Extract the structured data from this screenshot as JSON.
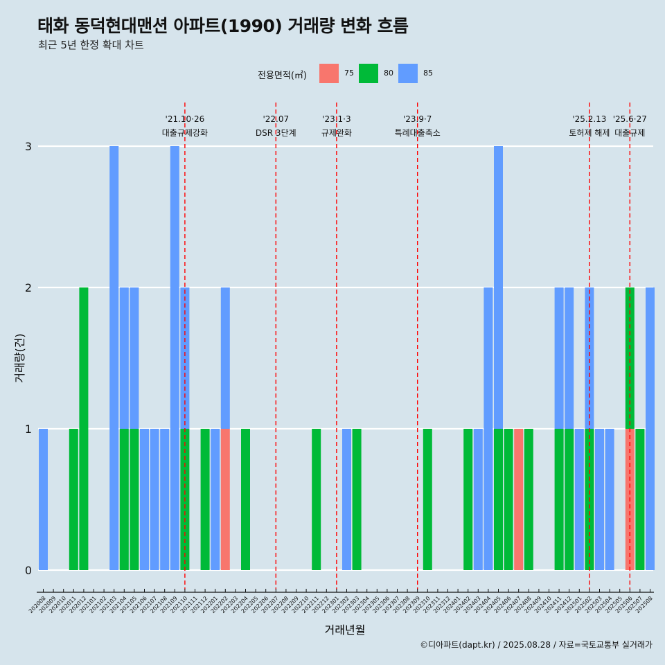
{
  "title": "태화 동덕현대맨션 아파트(1990) 거래량 변화 흐름",
  "subtitle": "최근 5년 한정 확대 차트",
  "caption": "©디아파트(dapt.kr) / 2025.08.28 / 자료=국토교통부 실거래가",
  "legend": {
    "title": "전용면적(㎡)",
    "items": [
      {
        "label": "75",
        "color": "#f8766d"
      },
      {
        "label": "80",
        "color": "#00ba38"
      },
      {
        "label": "85",
        "color": "#619cff"
      }
    ]
  },
  "chart_data": {
    "type": "bar",
    "stacked": true,
    "xlabel": "거래년월",
    "ylabel": "거래량(건)",
    "ylim": [
      0,
      3
    ],
    "y_ticks": [
      0,
      1,
      2,
      3
    ],
    "categories": [
      "202008",
      "202009",
      "202010",
      "202011",
      "202012",
      "202101",
      "202102",
      "202103",
      "202104",
      "202105",
      "202106",
      "202107",
      "202108",
      "202109",
      "202110",
      "202111",
      "202112",
      "202201",
      "202202",
      "202203",
      "202204",
      "202205",
      "202206",
      "202207",
      "202208",
      "202209",
      "202210",
      "202211",
      "202212",
      "202301",
      "202302",
      "202303",
      "202304",
      "202305",
      "202306",
      "202307",
      "202308",
      "202309",
      "202310",
      "202311",
      "202312",
      "202401",
      "202402",
      "202403",
      "202404",
      "202405",
      "202406",
      "202407",
      "202408",
      "202409",
      "202410",
      "202411",
      "202412",
      "202501",
      "202502",
      "202503",
      "202504",
      "202505",
      "202506",
      "202507",
      "202508"
    ],
    "bars": [
      {
        "x": "202008",
        "segments": [
          {
            "series": "85",
            "value": 1
          }
        ]
      },
      {
        "x": "202011",
        "segments": [
          {
            "series": "80",
            "value": 1
          }
        ]
      },
      {
        "x": "202012",
        "segments": [
          {
            "series": "80",
            "value": 2
          }
        ]
      },
      {
        "x": "202103",
        "segments": [
          {
            "series": "85",
            "value": 3
          }
        ]
      },
      {
        "x": "202104",
        "segments": [
          {
            "series": "80",
            "value": 1
          },
          {
            "series": "85",
            "value": 1
          }
        ]
      },
      {
        "x": "202105",
        "segments": [
          {
            "series": "80",
            "value": 1
          },
          {
            "series": "85",
            "value": 1
          }
        ]
      },
      {
        "x": "202106",
        "segments": [
          {
            "series": "85",
            "value": 1
          }
        ]
      },
      {
        "x": "202107",
        "segments": [
          {
            "series": "85",
            "value": 1
          }
        ]
      },
      {
        "x": "202108",
        "segments": [
          {
            "series": "85",
            "value": 1
          }
        ]
      },
      {
        "x": "202109",
        "segments": [
          {
            "series": "85",
            "value": 3
          }
        ]
      },
      {
        "x": "202110",
        "segments": [
          {
            "series": "80",
            "value": 1
          },
          {
            "series": "85",
            "value": 1
          }
        ]
      },
      {
        "x": "202112",
        "segments": [
          {
            "series": "80",
            "value": 1
          }
        ]
      },
      {
        "x": "202201",
        "segments": [
          {
            "series": "85",
            "value": 1
          }
        ]
      },
      {
        "x": "202202",
        "segments": [
          {
            "series": "75",
            "value": 1
          },
          {
            "series": "85",
            "value": 1
          }
        ]
      },
      {
        "x": "202204",
        "segments": [
          {
            "series": "80",
            "value": 1
          }
        ]
      },
      {
        "x": "202211",
        "segments": [
          {
            "series": "80",
            "value": 1
          }
        ]
      },
      {
        "x": "202302",
        "segments": [
          {
            "series": "85",
            "value": 1
          }
        ]
      },
      {
        "x": "202303",
        "segments": [
          {
            "series": "80",
            "value": 1
          }
        ]
      },
      {
        "x": "202310",
        "segments": [
          {
            "series": "80",
            "value": 1
          }
        ]
      },
      {
        "x": "202402",
        "segments": [
          {
            "series": "80",
            "value": 1
          }
        ]
      },
      {
        "x": "202403",
        "segments": [
          {
            "series": "85",
            "value": 1
          }
        ]
      },
      {
        "x": "202404",
        "segments": [
          {
            "series": "85",
            "value": 2
          }
        ]
      },
      {
        "x": "202405",
        "segments": [
          {
            "series": "80",
            "value": 1
          },
          {
            "series": "85",
            "value": 2
          }
        ]
      },
      {
        "x": "202406",
        "segments": [
          {
            "series": "80",
            "value": 1
          }
        ]
      },
      {
        "x": "202407",
        "segments": [
          {
            "series": "75",
            "value": 1
          }
        ]
      },
      {
        "x": "202408",
        "segments": [
          {
            "series": "80",
            "value": 1
          }
        ]
      },
      {
        "x": "202411",
        "segments": [
          {
            "series": "80",
            "value": 1
          },
          {
            "series": "85",
            "value": 1
          }
        ]
      },
      {
        "x": "202412",
        "segments": [
          {
            "series": "80",
            "value": 1
          },
          {
            "series": "85",
            "value": 1
          }
        ]
      },
      {
        "x": "202501",
        "segments": [
          {
            "series": "85",
            "value": 1
          }
        ]
      },
      {
        "x": "202502",
        "segments": [
          {
            "series": "80",
            "value": 1
          },
          {
            "series": "85",
            "value": 1
          }
        ]
      },
      {
        "x": "202503",
        "segments": [
          {
            "series": "85",
            "value": 1
          }
        ]
      },
      {
        "x": "202504",
        "segments": [
          {
            "series": "85",
            "value": 1
          }
        ]
      },
      {
        "x": "202506",
        "segments": [
          {
            "series": "75",
            "value": 1
          },
          {
            "series": "80",
            "value": 1
          }
        ]
      },
      {
        "x": "202507",
        "segments": [
          {
            "series": "80",
            "value": 1
          }
        ]
      },
      {
        "x": "202508",
        "segments": [
          {
            "series": "85",
            "value": 2
          }
        ]
      }
    ],
    "events": [
      {
        "x": "202110",
        "date": "'21.10·26",
        "label": "대출규제강화"
      },
      {
        "x": "202207",
        "date": "'22.07",
        "label": "DSR 3단계"
      },
      {
        "x": "202301",
        "date": "'23.1·3",
        "label": "규제완화"
      },
      {
        "x": "202309",
        "date": "'23.9·7",
        "label": "특례대출축소"
      },
      {
        "x": "202502",
        "date": "'25.2.13",
        "label": "토허제 해제"
      },
      {
        "x": "202506",
        "date": "'25.6·27",
        "label": "대출규제"
      }
    ]
  }
}
